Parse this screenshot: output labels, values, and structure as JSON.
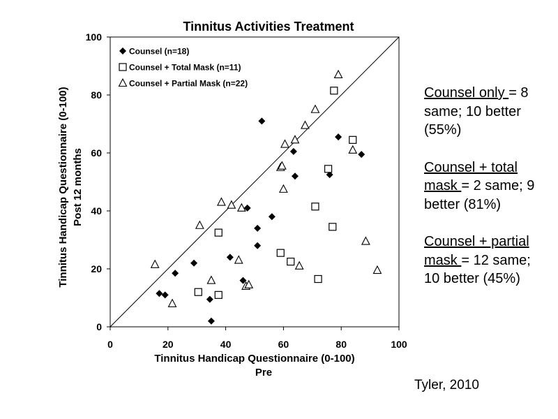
{
  "chart_data": {
    "type": "scatter",
    "title": "Tinnitus Activities Treatment",
    "xlabel": [
      "Tinnitus Handicap Questionnaire (0-100)",
      "Pre"
    ],
    "ylabel": [
      "Tinnitus Handicap Questionnaire (0-100)",
      "Post 12 months"
    ],
    "xlim": [
      0,
      100
    ],
    "ylim": [
      0,
      100
    ],
    "xticks": [
      0,
      20,
      40,
      60,
      80,
      100
    ],
    "yticks": [
      0,
      20,
      40,
      60,
      80,
      100
    ],
    "grid": false,
    "legend_position": "top-left",
    "reference_line": {
      "type": "diagonal",
      "from": [
        0,
        0
      ],
      "to": [
        100,
        100
      ]
    },
    "series": [
      {
        "name": "Counsel (n=18)",
        "marker": "filled-diamond",
        "points": [
          [
            17,
            11.5
          ],
          [
            19,
            11
          ],
          [
            22.5,
            18.5
          ],
          [
            29,
            22
          ],
          [
            34.5,
            9.5
          ],
          [
            35,
            2
          ],
          [
            41.5,
            24
          ],
          [
            46,
            16
          ],
          [
            47.5,
            41
          ],
          [
            51,
            34
          ],
          [
            51,
            28
          ],
          [
            52.5,
            71
          ],
          [
            56,
            38
          ],
          [
            63.5,
            60.5
          ],
          [
            64,
            52
          ],
          [
            76,
            52.5
          ],
          [
            79,
            65.5
          ],
          [
            87,
            59.5
          ]
        ]
      },
      {
        "name": "Counsel + Total Mask (n=11)",
        "marker": "open-square",
        "points": [
          [
            30.5,
            12
          ],
          [
            37.5,
            32.5
          ],
          [
            37.5,
            11
          ],
          [
            59,
            25.5
          ],
          [
            62.5,
            22.5
          ],
          [
            71,
            41.5
          ],
          [
            72,
            16.5
          ],
          [
            75.5,
            54.5
          ],
          [
            77,
            34.5
          ],
          [
            77.5,
            81.5
          ],
          [
            84,
            64.5
          ]
        ]
      },
      {
        "name": "Counsel + Partial Mask (n=22)",
        "marker": "open-triangle",
        "points": [
          [
            15.5,
            21.5
          ],
          [
            21.5,
            8
          ],
          [
            31,
            35
          ],
          [
            35,
            16
          ],
          [
            38.5,
            43
          ],
          [
            42,
            42
          ],
          [
            44.5,
            23
          ],
          [
            45.5,
            41
          ],
          [
            47,
            14
          ],
          [
            48,
            14.5
          ],
          [
            59,
            55
          ],
          [
            59.5,
            55.5
          ],
          [
            60,
            47.5
          ],
          [
            60.5,
            63
          ],
          [
            64,
            64.5
          ],
          [
            65.5,
            21
          ],
          [
            67.5,
            69.5
          ],
          [
            71,
            75
          ],
          [
            79,
            87
          ],
          [
            84,
            61
          ],
          [
            88.5,
            29.5
          ],
          [
            92.5,
            19.5
          ]
        ]
      }
    ]
  },
  "notes": [
    {
      "underlined": "Counsel only ",
      "rest": "= 8 same; 10 better (55%)"
    },
    {
      "underlined": "Counsel + total mask ",
      "rest": "= 2 same; 9 better (81%)"
    },
    {
      "underlined": "Counsel + partial mask ",
      "rest": "= 12 same; 10 better (45%)"
    }
  ],
  "citation": "Tyler, 2010"
}
